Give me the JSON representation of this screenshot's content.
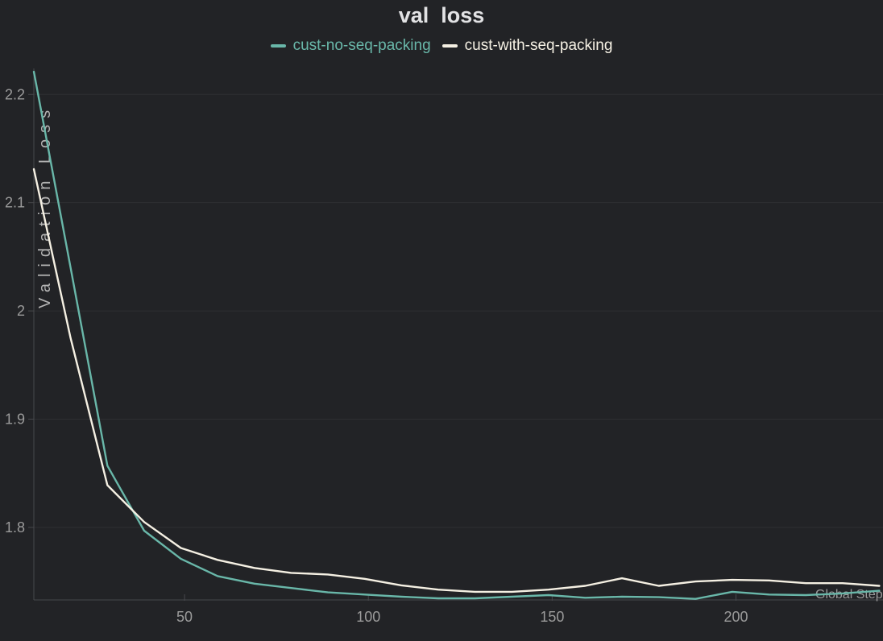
{
  "theme": {
    "bg": "#222326",
    "grid": "#2e2f32",
    "axis": "#47484c",
    "tick_text": "#9b9b9b",
    "title_text": "#e2e2e4",
    "ylabel_text": "#b3b3b3"
  },
  "chart_data": {
    "type": "line",
    "title": "val  loss",
    "xlabel": "Global Step",
    "ylabel": "Validation Loss",
    "legend_position": "top",
    "grid": "horizontal-only",
    "xlim": [
      9,
      240
    ],
    "ylim": [
      1.733,
      2.224
    ],
    "xticks": [
      50,
      100,
      150,
      200
    ],
    "xtick_labels": [
      "50",
      "100",
      "150",
      "200"
    ],
    "yticks": [
      1.8,
      1.9,
      2.0,
      2.1,
      2.2
    ],
    "ytick_labels": [
      "1.8",
      "1.9",
      "2",
      "2.1",
      "2.2"
    ],
    "x": [
      9,
      19,
      29,
      39,
      49,
      59,
      69,
      79,
      89,
      99,
      109,
      119,
      129,
      139,
      149,
      159,
      169,
      179,
      189,
      199,
      209,
      219,
      229,
      239
    ],
    "series": [
      {
        "name": "cust-no-seq-packing",
        "color": "#69b7a9",
        "values": [
          2.221,
          2.04,
          1.857,
          1.797,
          1.771,
          1.755,
          1.748,
          1.744,
          1.74,
          1.738,
          1.736,
          1.7345,
          1.7345,
          1.736,
          1.7375,
          1.735,
          1.736,
          1.7355,
          1.734,
          1.7405,
          1.738,
          1.7375,
          1.739,
          1.7415
        ]
      },
      {
        "name": "cust-with-seq-packing",
        "color": "#f5f0e3",
        "values": [
          2.131,
          1.975,
          1.839,
          1.805,
          1.781,
          1.77,
          1.7625,
          1.758,
          1.7565,
          1.7525,
          1.7465,
          1.7425,
          1.7405,
          1.7405,
          1.7425,
          1.746,
          1.753,
          1.746,
          1.75,
          1.7515,
          1.751,
          1.7485,
          1.7485,
          1.746
        ]
      }
    ]
  }
}
